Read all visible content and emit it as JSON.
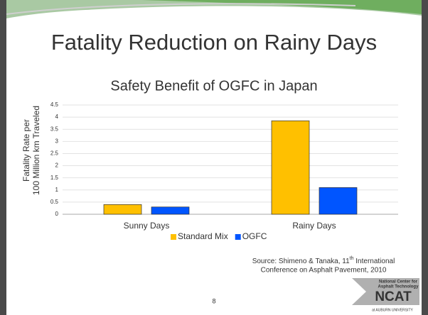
{
  "slide_title": "Fatality Reduction on Rainy Days",
  "page_number": "8",
  "source": {
    "before": "Source: Shimeno & Tanaka, 11",
    "sup": "th",
    "after": " International",
    "line2": "Conference on Asphalt Pavement, 2010"
  },
  "logo": {
    "small": "National Center for",
    "small2": "Asphalt Technology",
    "big": "NCAT",
    "bottom": "at AUBURN UNIVERSITY"
  },
  "chart_data": {
    "type": "bar",
    "title": "Safety Benefit of OGFC in Japan",
    "ylabel": [
      "Fatality Rate per",
      "100 Million km Traveled"
    ],
    "categories": [
      "Sunny Days",
      "Rainy Days"
    ],
    "series": [
      {
        "name": "Standard Mix",
        "color": "#ffc000",
        "values": [
          0.4,
          3.85
        ]
      },
      {
        "name": "OGFC",
        "color": "#0055ff",
        "values": [
          0.3,
          1.1
        ]
      }
    ],
    "ylim": [
      0,
      4.5
    ],
    "yticks": [
      0,
      0.5,
      1,
      1.5,
      2,
      2.5,
      3,
      3.5,
      4,
      4.5
    ],
    "grid": true,
    "legend": "bottom"
  }
}
